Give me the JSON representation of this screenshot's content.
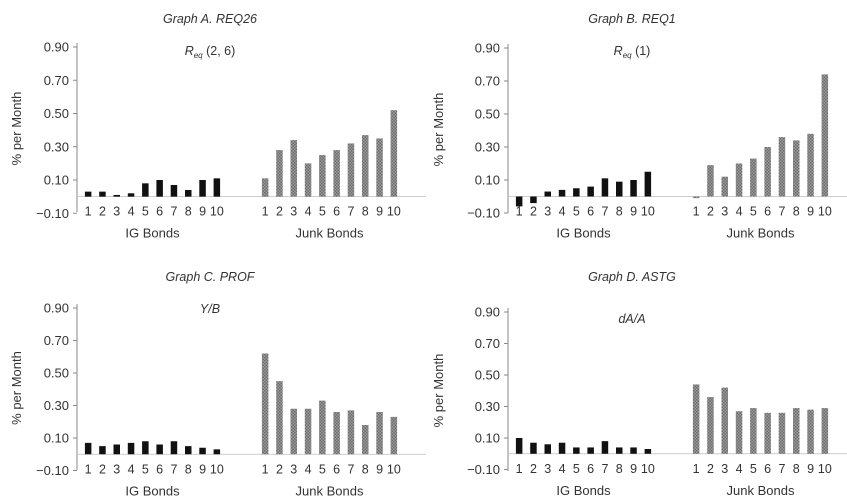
{
  "chart_data": [
    {
      "type": "bar",
      "title": "Graph A. REQ26",
      "subtitle": "R_eq (2, 6)",
      "subtitle_main": "R",
      "subtitle_sub": "eq",
      "subtitle_rest": " (2, 6)",
      "ylabel": "% per Month",
      "ylim": [
        -0.1,
        0.9
      ],
      "yticks": [
        "0.90",
        "0.70",
        "0.50",
        "0.30",
        "0.10",
        "−0.10"
      ],
      "ytick_values": [
        0.9,
        0.7,
        0.5,
        0.3,
        0.1,
        -0.1
      ],
      "groups": [
        "IG Bonds",
        "Junk Bonds"
      ],
      "categories": [
        "1",
        "2",
        "3",
        "4",
        "5",
        "6",
        "7",
        "8",
        "9",
        "10"
      ],
      "grid": false,
      "legend": "none",
      "series": [
        {
          "values": [
            0.03,
            0.03,
            0.01,
            0.02,
            0.08,
            0.1,
            0.07,
            0.04,
            0.1,
            0.11
          ],
          "color": "#111111"
        },
        {
          "values": [
            0.11,
            0.28,
            0.34,
            0.2,
            0.25,
            0.28,
            0.32,
            0.37,
            0.35,
            0.52
          ],
          "color": "#8a8a8a"
        }
      ]
    },
    {
      "type": "bar",
      "title": "Graph B. REQ1",
      "subtitle": "R_eq (1)",
      "subtitle_main": "R",
      "subtitle_sub": "eq",
      "subtitle_rest": " (1)",
      "ylabel": "% per Month",
      "ylim": [
        -0.1,
        0.9
      ],
      "yticks": [
        "0.90",
        "0.70",
        "0.50",
        "0.30",
        "0.10",
        "−0.10"
      ],
      "ytick_values": [
        0.9,
        0.7,
        0.5,
        0.3,
        0.1,
        -0.1
      ],
      "groups": [
        "IG Bonds",
        "Junk Bonds"
      ],
      "categories": [
        "1",
        "2",
        "3",
        "4",
        "5",
        "6",
        "7",
        "8",
        "9",
        "10"
      ],
      "grid": false,
      "legend": "none",
      "series": [
        {
          "values": [
            -0.06,
            -0.04,
            0.03,
            0.04,
            0.05,
            0.06,
            0.11,
            0.09,
            0.1,
            0.15
          ],
          "color": "#111111"
        },
        {
          "values": [
            -0.01,
            0.19,
            0.12,
            0.2,
            0.23,
            0.3,
            0.36,
            0.34,
            0.38,
            0.74
          ],
          "color": "#8a8a8a"
        }
      ]
    },
    {
      "type": "bar",
      "title": "Graph C. PROF",
      "subtitle": "Y/B",
      "ylabel": "% per Month",
      "ylim": [
        -0.1,
        0.9
      ],
      "yticks": [
        "0.90",
        "0.70",
        "0.50",
        "0.30",
        "0.10",
        "−0.10"
      ],
      "ytick_values": [
        0.9,
        0.7,
        0.5,
        0.3,
        0.1,
        -0.1
      ],
      "groups": [
        "IG Bonds",
        "Junk Bonds"
      ],
      "categories": [
        "1",
        "2",
        "3",
        "4",
        "5",
        "6",
        "7",
        "8",
        "9",
        "10"
      ],
      "grid": false,
      "legend": "none",
      "series": [
        {
          "values": [
            0.07,
            0.05,
            0.06,
            0.07,
            0.08,
            0.06,
            0.08,
            0.05,
            0.04,
            0.03
          ],
          "color": "#111111"
        },
        {
          "values": [
            0.62,
            0.45,
            0.28,
            0.28,
            0.33,
            0.26,
            0.27,
            0.18,
            0.26,
            0.23
          ],
          "color": "#8a8a8a"
        }
      ]
    },
    {
      "type": "bar",
      "title": "Graph D. ASTG",
      "subtitle": "dA/A",
      "ylabel": "% per Month",
      "ylim": [
        -0.1,
        0.9
      ],
      "yticks": [
        "0.90",
        "0.70",
        "0.50",
        "0.30",
        "0.10",
        "−0.10"
      ],
      "ytick_values": [
        0.9,
        0.7,
        0.5,
        0.3,
        0.1,
        -0.1
      ],
      "groups": [
        "IG Bonds",
        "Junk Bonds"
      ],
      "categories": [
        "1",
        "2",
        "3",
        "4",
        "5",
        "6",
        "7",
        "8",
        "9",
        "10"
      ],
      "grid": false,
      "legend": "none",
      "series": [
        {
          "values": [
            0.1,
            0.07,
            0.06,
            0.07,
            0.04,
            0.04,
            0.08,
            0.04,
            0.04,
            0.03
          ],
          "color": "#111111"
        },
        {
          "values": [
            0.44,
            0.36,
            0.42,
            0.27,
            0.29,
            0.26,
            0.26,
            0.29,
            0.28,
            0.29
          ],
          "color": "#8a8a8a"
        }
      ]
    }
  ]
}
